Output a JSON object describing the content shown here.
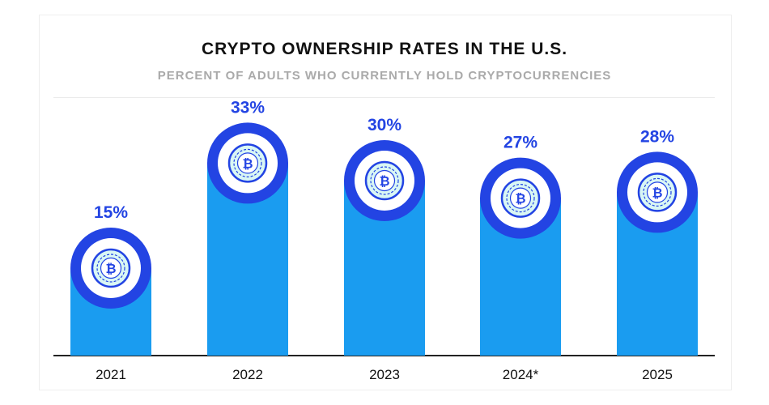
{
  "chart_data": {
    "type": "bar",
    "title": "CRYPTO OWNERSHIP RATES IN THE U.S.",
    "subtitle": "PERCENT OF ADULTS WHO CURRENTLY HOLD CRYPTOCURRENCIES",
    "categories": [
      "2021",
      "2022",
      "2023",
      "2024*",
      "2025"
    ],
    "values": [
      15,
      33,
      30,
      27,
      28
    ],
    "value_labels": [
      "15%",
      "33%",
      "30%",
      "27%",
      "28%"
    ],
    "unit": "%",
    "ylim": [
      0,
      40
    ],
    "xlabel": "",
    "ylabel": "",
    "grid": false,
    "legend": null,
    "icon": "bitcoin-coin-icon",
    "icon_glyph": "₿"
  },
  "colors": {
    "bar": "#1a9cf0",
    "ring": "#2344e3",
    "coin_fill": "#d9f7f4",
    "label": "#2344e3",
    "axis": "#222222"
  }
}
